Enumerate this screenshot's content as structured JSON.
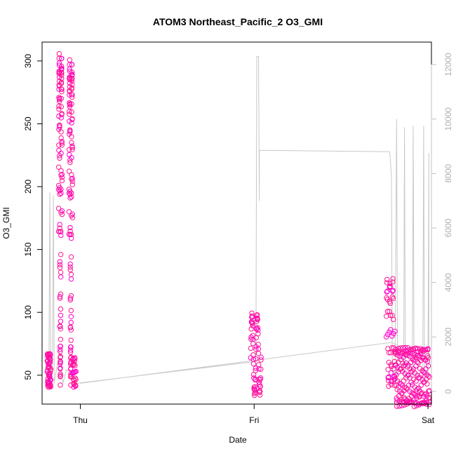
{
  "chart_data": {
    "type": "scatter",
    "title": "ATOM3 Northeast_Pacific_2 O3_GMI",
    "xlabel": "Date",
    "ylabel": "O3_GMI",
    "x_ticks": [
      "Thu",
      "Fri",
      "Sat"
    ],
    "x_range_days": [
      -0.22,
      2.02
    ],
    "y_left": {
      "range": [
        27,
        315
      ],
      "ticks": [
        50,
        100,
        150,
        200,
        250,
        300
      ]
    },
    "y_right": {
      "range": [
        0,
        12000
      ],
      "ticks": [
        0,
        2000,
        4000,
        6000,
        8000,
        10000,
        12000
      ],
      "color": "#c0c0c0"
    },
    "grid": false,
    "colors": {
      "points": "#ff1493",
      "points_alt": "#ff00cc",
      "line": "#c8c8c8",
      "axes": "#000000"
    },
    "series": [
      {
        "kind": "points",
        "segments": [
          {
            "x": [
              -0.19,
              -0.17
            ],
            "y_min": 40,
            "y_max": 68,
            "wave": 5,
            "n": 50
          },
          {
            "x": [
              -0.125,
              -0.105
            ],
            "y_min": 42,
            "y_max": 308,
            "wave": 1.5,
            "n": 110
          },
          {
            "x": [
              -0.065,
              -0.045
            ],
            "y_min": 42,
            "y_max": 303,
            "wave": 1.5,
            "n": 110
          },
          {
            "x": [
              -0.045,
              -0.025
            ],
            "y_min": 40,
            "y_max": 65,
            "wave": 2,
            "n": 25
          },
          {
            "x": [
              0.98,
              1.04
            ],
            "y_min": 33,
            "y_max": 100,
            "wave": 2,
            "n": 70
          },
          {
            "x": [
              1.76,
              1.81
            ],
            "y_min": 40,
            "y_max": 128,
            "wave": 3,
            "n": 55
          },
          {
            "x": [
              1.81,
              2.01
            ],
            "y_min": 25,
            "y_max": 73,
            "wave": 14,
            "n": 200
          }
        ]
      },
      {
        "kind": "line",
        "axis": "right",
        "points": [
          [
            -0.18,
            1500
          ],
          [
            -0.175,
            7300
          ],
          [
            -0.17,
            300
          ],
          [
            -0.16,
            1000
          ],
          [
            -0.155,
            7200
          ],
          [
            -0.15,
            300
          ],
          [
            -0.12,
            1500
          ],
          [
            -0.1,
            300
          ],
          [
            -0.08,
            800
          ],
          [
            -0.02,
            300
          ],
          [
            1.01,
            1100
          ],
          [
            1.015,
            12300
          ],
          [
            1.025,
            12300
          ],
          [
            1.03,
            7000
          ],
          [
            1.03,
            8850
          ],
          [
            1.78,
            8800
          ],
          [
            1.79,
            7900
          ],
          [
            1.795,
            300
          ],
          [
            1.81,
            400
          ],
          [
            1.82,
            10000
          ],
          [
            1.825,
            400
          ],
          [
            1.86,
            500
          ],
          [
            1.865,
            9700
          ],
          [
            1.87,
            600
          ],
          [
            1.91,
            500
          ],
          [
            1.915,
            9750
          ],
          [
            1.92,
            600
          ],
          [
            1.97,
            500
          ],
          [
            1.975,
            9750
          ],
          [
            1.98,
            400
          ],
          [
            2.0,
            600
          ],
          [
            2.005,
            8750
          ],
          [
            2.005,
            1200
          ],
          [
            1.79,
            1800
          ],
          [
            0.0,
            300
          ]
        ]
      }
    ]
  }
}
